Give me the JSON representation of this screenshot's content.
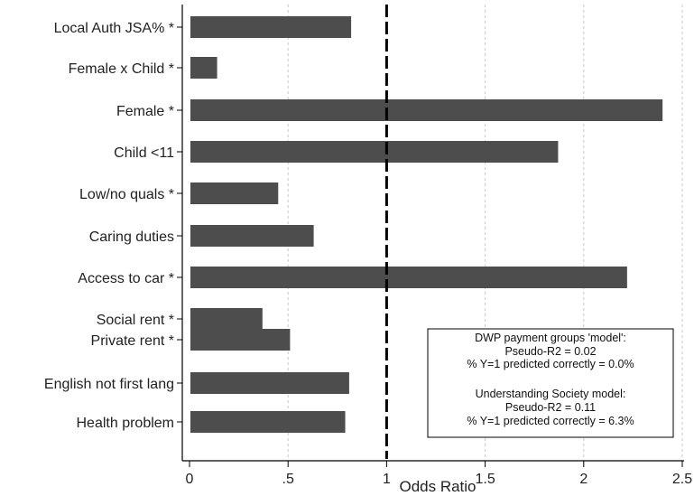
{
  "chart_data": {
    "type": "bar",
    "orientation": "horizontal",
    "title": "",
    "xlabel": "Odds Ratio",
    "ylabel": "",
    "xlim": [
      0,
      2.5
    ],
    "x_ticks": [
      0,
      0.5,
      1,
      1.5,
      2,
      2.5
    ],
    "x_tick_labels": [
      "0",
      ".5",
      "1",
      "1.5",
      "2",
      "2.5"
    ],
    "reference_line": 1,
    "grid": "vertical dashed",
    "bar_color": "#4d4d4d",
    "categories": [
      "Local Auth JSA% *",
      "Female x Child *",
      "Female *",
      "Child <11",
      "Low/no quals *",
      "Caring duties",
      "Access to car *",
      "Social rent *",
      "Private rent *",
      "English not first lang",
      "Health problem"
    ],
    "values": [
      0.82,
      0.14,
      2.4,
      1.87,
      0.45,
      0.63,
      2.22,
      0.37,
      0.51,
      0.81,
      0.79
    ],
    "annotation": {
      "placement": "bottom-right",
      "lines": [
        "DWP payment groups 'model':",
        "Pseudo-R2 = 0.02",
        "% Y=1 predicted correctly = 0.0%",
        "",
        "Understanding Society model:",
        "Pseudo-R2 = 0.11",
        "% Y=1 predicted correctly = 6.3%"
      ]
    }
  }
}
